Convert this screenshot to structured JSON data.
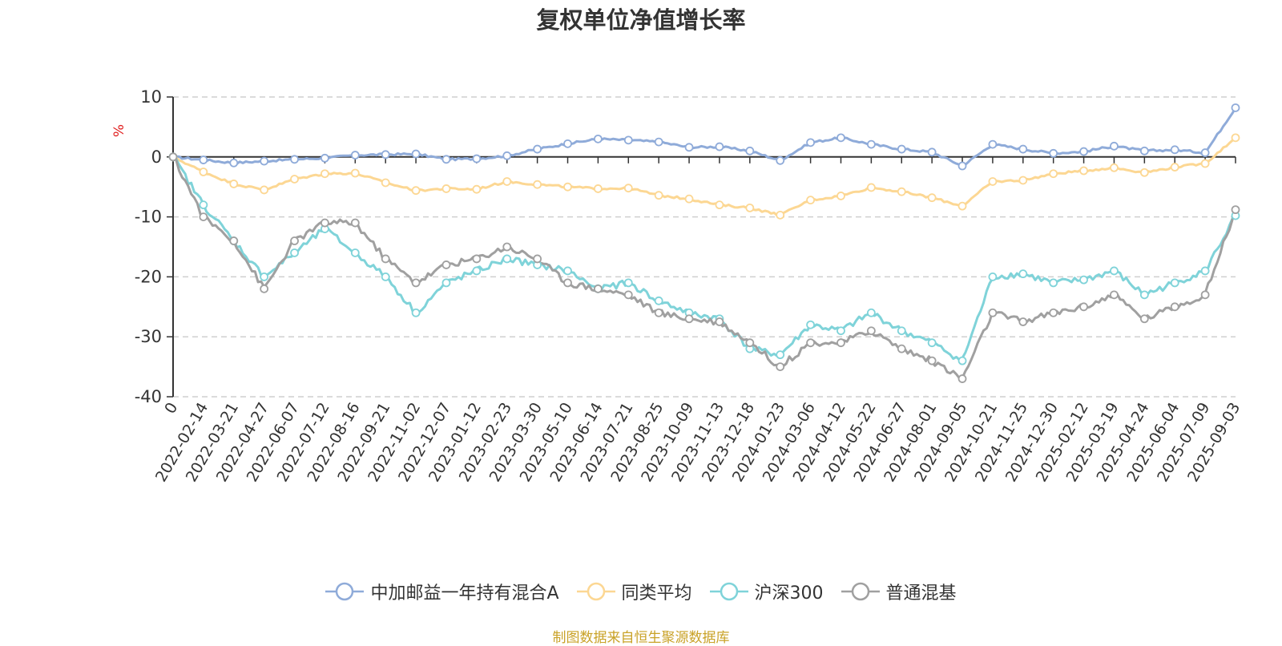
{
  "title": "复权单位净值增长率",
  "source": "制图数据来自恒生聚源数据库",
  "chart_data": {
    "type": "line",
    "title": "复权单位净值增长率",
    "ylabel": "%",
    "ylim": [
      -40,
      10
    ],
    "yticks": [
      10,
      0,
      -10,
      -20,
      -30,
      -40
    ],
    "grid": true,
    "legend_position": "bottom-center",
    "x_tick_labels": [
      "0",
      "2022-02-14",
      "2022-03-21",
      "2022-04-27",
      "2022-06-07",
      "2022-07-12",
      "2022-08-16",
      "2022-09-21",
      "2022-11-02",
      "2022-12-07",
      "2023-01-12",
      "2023-02-23",
      "2023-03-30",
      "2023-05-10",
      "2023-06-14",
      "2023-07-21",
      "2023-08-25",
      "2023-10-09",
      "2023-11-13",
      "2023-12-18",
      "2024-01-23",
      "2024-03-06",
      "2024-04-12",
      "2024-05-22",
      "2024-06-27",
      "2024-08-01",
      "2024-09-05",
      "2024-10-21",
      "2024-11-25",
      "2024-12-30",
      "2025-02-12",
      "2025-03-19",
      "2025-04-24",
      "2025-06-04",
      "2025-07-09",
      "2025-09-03"
    ],
    "series": [
      {
        "name": "中加邮益一年持有混合A",
        "color": "#8fabd9",
        "values": [
          0,
          -0.5,
          -1,
          -0.7,
          -0.4,
          -0.2,
          0.3,
          0.4,
          0.5,
          -0.4,
          -0.3,
          0.2,
          1.3,
          2.2,
          3.0,
          2.8,
          2.5,
          1.6,
          1.7,
          1.0,
          -0.6,
          2.4,
          3.2,
          2.1,
          1.3,
          0.8,
          -1.5,
          2.1,
          1.3,
          0.6,
          0.9,
          1.8,
          1.0,
          1.2,
          0.7,
          8.2
        ]
      },
      {
        "name": "同类平均",
        "color": "#fcd793",
        "values": [
          0,
          -2.5,
          -4.5,
          -5.5,
          -3.7,
          -2.8,
          -2.7,
          -4.3,
          -5.6,
          -5.3,
          -5.4,
          -4.1,
          -4.6,
          -5.0,
          -5.3,
          -5.2,
          -6.4,
          -7.0,
          -8.0,
          -8.5,
          -9.7,
          -7.2,
          -6.5,
          -5.1,
          -5.8,
          -6.8,
          -8.2,
          -4.1,
          -3.9,
          -2.8,
          -2.3,
          -1.8,
          -2.6,
          -1.7,
          -1.1,
          3.2
        ]
      },
      {
        "name": "沪深300",
        "color": "#7fd3d9",
        "values": [
          0,
          -8,
          -14,
          -20,
          -16,
          -12,
          -16,
          -20,
          -26,
          -21,
          -19,
          -17,
          -18,
          -19,
          -22,
          -21,
          -24,
          -26,
          -27,
          -32,
          -33,
          -28,
          -29,
          -26,
          -29,
          -31,
          -34,
          -20,
          -19.5,
          -21,
          -20.5,
          -19,
          -23,
          -21,
          -19,
          -9.8
        ]
      },
      {
        "name": "普通混基",
        "color": "#a0a0a0",
        "values": [
          0,
          -10,
          -14,
          -22,
          -14,
          -11,
          -11,
          -17,
          -21,
          -18,
          -17,
          -15,
          -17,
          -21,
          -22,
          -23,
          -26,
          -27,
          -27.5,
          -31,
          -35,
          -31,
          -31,
          -29,
          -32,
          -34,
          -37,
          -26,
          -27.5,
          -26,
          -25,
          -23,
          -27,
          -25,
          -23,
          -8.8
        ]
      }
    ]
  },
  "legend": [
    {
      "label": "中加邮益一年持有混合A",
      "color": "#8fabd9"
    },
    {
      "label": "同类平均",
      "color": "#fcd793"
    },
    {
      "label": "沪深300",
      "color": "#7fd3d9"
    },
    {
      "label": "普通混基",
      "color": "#a0a0a0"
    }
  ]
}
